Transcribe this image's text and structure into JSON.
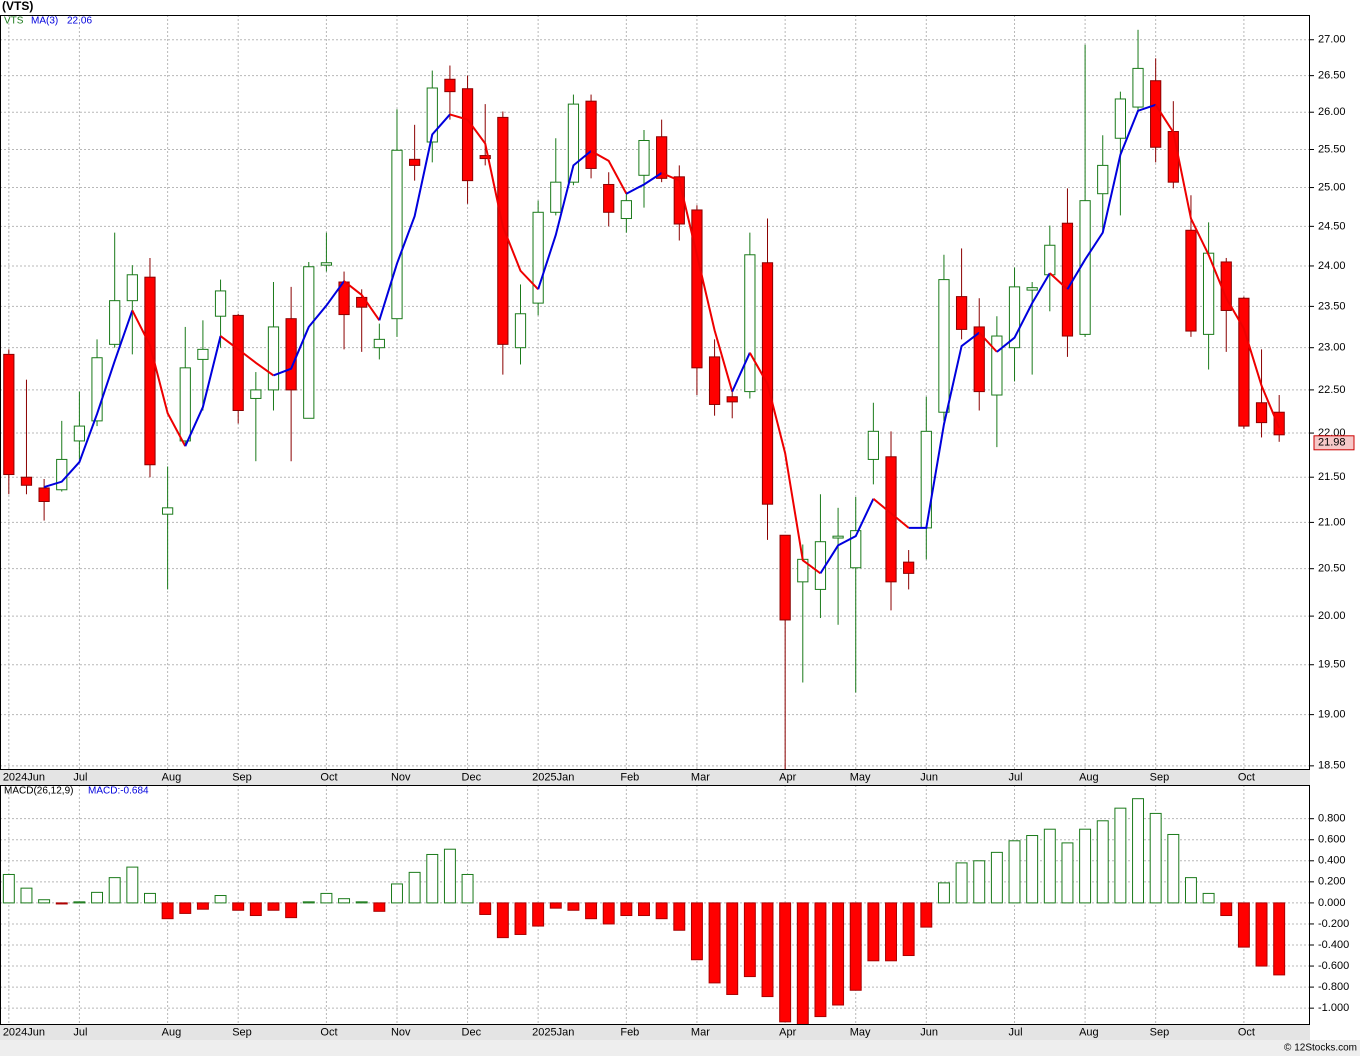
{
  "chart_data": [
    {
      "type": "candlestick",
      "title": "(VTS)",
      "name": "VTS",
      "categories": [
        "2024Jun",
        null,
        null,
        null,
        "Jul",
        null,
        null,
        null,
        null,
        "Aug",
        null,
        null,
        null,
        "Sep",
        null,
        null,
        null,
        null,
        "Oct",
        null,
        null,
        null,
        "Nov",
        null,
        null,
        null,
        "Dec",
        null,
        null,
        null,
        "2025Jan",
        null,
        null,
        null,
        null,
        "Feb",
        null,
        null,
        null,
        "Mar",
        null,
        null,
        null,
        null,
        "Apr",
        null,
        null,
        null,
        "May",
        null,
        null,
        null,
        "Jun",
        null,
        null,
        null,
        null,
        "Jul",
        null,
        null,
        null,
        "Aug",
        null,
        null,
        null,
        "Sep",
        null,
        null,
        null,
        null,
        "Oct",
        null,
        null
      ],
      "open": [
        22.92,
        21.5,
        21.38,
        21.36,
        21.91,
        22.14,
        23.04,
        23.57,
        23.86,
        21.09,
        21.91,
        22.86,
        23.38,
        23.39,
        22.4,
        22.5,
        23.35,
        22.17,
        24.01,
        23.8,
        23.61,
        23.0,
        23.35,
        25.37,
        25.6,
        26.45,
        26.32,
        25.42,
        25.93,
        23.0,
        23.54,
        24.68,
        25.07,
        26.15,
        25.04,
        24.6,
        25.16,
        25.67,
        25.14,
        24.71,
        22.89,
        22.42,
        22.48,
        24.04,
        20.86,
        20.36,
        20.28,
        20.83,
        20.51,
        21.7,
        21.73,
        20.57,
        20.94,
        22.24,
        23.62,
        23.25,
        22.44,
        23.0,
        23.7,
        23.89,
        24.54,
        23.16,
        24.92,
        25.65,
        26.07,
        26.43,
        25.74,
        24.45,
        23.16,
        24.05,
        23.6,
        22.35,
        22.24
      ],
      "high": [
        22.98,
        22.62,
        21.48,
        22.14,
        22.48,
        23.1,
        24.42,
        24.01,
        24.1,
        21.62,
        23.25,
        23.33,
        23.83,
        23.41,
        22.71,
        23.8,
        23.74,
        24.05,
        24.42,
        23.93,
        23.71,
        23.29,
        26.04,
        25.83,
        26.57,
        26.64,
        26.5,
        26.11,
        26.01,
        23.77,
        24.83,
        25.65,
        26.24,
        26.24,
        25.2,
        24.94,
        25.76,
        25.9,
        25.29,
        24.77,
        23.1,
        22.5,
        24.42,
        24.6,
        20.86,
        20.76,
        21.31,
        21.16,
        21.28,
        22.35,
        22.02,
        20.7,
        22.42,
        24.14,
        24.22,
        23.6,
        23.38,
        23.98,
        23.8,
        24.51,
        24.99,
        26.93,
        25.69,
        26.28,
        27.14,
        26.74,
        26.15,
        24.9,
        24.55,
        24.1,
        23.62,
        22.98,
        22.44
      ],
      "low": [
        21.31,
        21.31,
        21.02,
        21.34,
        21.7,
        22.08,
        23.0,
        22.92,
        21.5,
        20.28,
        21.86,
        22.26,
        23.0,
        22.11,
        21.68,
        22.26,
        21.68,
        22.17,
        23.93,
        22.98,
        22.95,
        22.86,
        23.13,
        25.09,
        25.33,
        25.9,
        24.79,
        25.29,
        22.68,
        22.8,
        23.39,
        24.64,
        25.03,
        25.12,
        24.5,
        24.42,
        24.74,
        25.07,
        24.32,
        22.44,
        22.2,
        22.17,
        22.4,
        20.81,
        18.46,
        19.32,
        19.98,
        19.91,
        19.22,
        21.42,
        20.06,
        20.28,
        20.6,
        22.14,
        23.1,
        22.26,
        21.84,
        22.6,
        22.68,
        23.44,
        22.89,
        23.13,
        24.45,
        24.64,
        26.01,
        25.33,
        24.99,
        23.13,
        22.74,
        22.95,
        22.05,
        21.95,
        21.9
      ],
      "close": [
        21.53,
        21.41,
        21.23,
        21.7,
        22.08,
        22.88,
        23.57,
        23.89,
        21.64,
        21.16,
        22.76,
        22.98,
        23.69,
        22.26,
        22.5,
        23.25,
        22.5,
        23.99,
        24.04,
        23.4,
        23.49,
        23.1,
        25.49,
        25.29,
        26.33,
        26.28,
        25.09,
        25.38,
        23.04,
        23.41,
        24.68,
        25.07,
        26.11,
        25.25,
        24.68,
        24.83,
        25.62,
        25.12,
        24.53,
        22.76,
        22.33,
        22.36,
        24.14,
        21.2,
        19.96,
        20.6,
        20.79,
        20.85,
        20.91,
        22.02,
        20.36,
        20.45,
        22.02,
        23.83,
        23.22,
        22.48,
        23.14,
        23.74,
        23.73,
        24.26,
        23.14,
        24.83,
        25.29,
        26.18,
        26.6,
        25.53,
        25.07,
        23.2,
        24.16,
        23.45,
        22.08,
        22.12,
        21.98
      ],
      "up_color": "#1a7a1a",
      "down_color": "#ff0000",
      "series": [
        {
          "name": "MA(3)",
          "up_color": "#0000dd",
          "down_color": "#ee0000",
          "values": [
            null,
            null,
            21.39,
            21.45,
            21.67,
            22.22,
            22.84,
            23.45,
            23.03,
            22.23,
            21.85,
            22.3,
            23.14,
            22.98,
            22.82,
            22.67,
            22.75,
            23.25,
            23.51,
            23.81,
            23.64,
            23.33,
            24.03,
            24.63,
            25.7,
            25.97,
            25.9,
            25.58,
            24.5,
            23.94,
            23.71,
            24.39,
            25.29,
            25.48,
            25.35,
            24.92,
            25.04,
            25.19,
            25.09,
            24.14,
            23.21,
            22.48,
            22.94,
            22.57,
            21.77,
            20.59,
            20.45,
            20.75,
            20.85,
            21.26,
            21.1,
            20.94,
            20.94,
            22.1,
            23.02,
            23.18,
            22.95,
            23.12,
            23.54,
            23.91,
            23.71,
            24.08,
            24.42,
            25.43,
            26.02,
            26.1,
            25.73,
            24.6,
            24.14,
            23.6,
            23.23,
            22.55,
            22.06
          ]
        }
      ],
      "log_scale": true,
      "grid": true,
      "ylim": [
        18.46,
        27.35
      ],
      "yticks": [
        {
          "value": 18.5,
          "label": "18.50"
        },
        {
          "value": 19,
          "label": "19.00"
        },
        {
          "value": 19.5,
          "label": "19.50"
        },
        {
          "value": 20,
          "label": "20.00"
        },
        {
          "value": 20.5,
          "label": "20.50"
        },
        {
          "value": 21,
          "label": "21.00"
        },
        {
          "value": 21.5,
          "label": "21.50"
        },
        {
          "value": 22,
          "label": "22.00"
        },
        {
          "value": 22.5,
          "label": "22.50"
        },
        {
          "value": 23,
          "label": "23.00"
        },
        {
          "value": 23.5,
          "label": "23.50"
        },
        {
          "value": 24,
          "label": "24.00"
        },
        {
          "value": 24.5,
          "label": "24.50"
        },
        {
          "value": 25,
          "label": "25.00"
        },
        {
          "value": 25.5,
          "label": "25.50"
        },
        {
          "value": 26,
          "label": "26.00"
        },
        {
          "value": 26.5,
          "label": "26.50"
        },
        {
          "value": 27,
          "label": "27.00"
        }
      ]
    },
    {
      "type": "bar",
      "name": "MACD(26,12,9)",
      "legend_value_label": "MACD:-0.684",
      "categories": [
        "2024Jun",
        null,
        null,
        null,
        "Jul",
        null,
        null,
        null,
        null,
        "Aug",
        null,
        null,
        null,
        "Sep",
        null,
        null,
        null,
        null,
        "Oct",
        null,
        null,
        null,
        "Nov",
        null,
        null,
        null,
        "Dec",
        null,
        null,
        null,
        "2025Jan",
        null,
        null,
        null,
        null,
        "Feb",
        null,
        null,
        null,
        "Mar",
        null,
        null,
        null,
        null,
        "Apr",
        null,
        null,
        null,
        "May",
        null,
        null,
        null,
        "Jun",
        null,
        null,
        null,
        null,
        "Jul",
        null,
        null,
        null,
        "Aug",
        null,
        null,
        null,
        "Sep",
        null,
        null,
        null,
        null,
        "Oct",
        null,
        null
      ],
      "values": [
        0.27,
        0.14,
        0.03,
        -0.01,
        0.01,
        0.1,
        0.24,
        0.34,
        0.09,
        -0.15,
        -0.1,
        -0.06,
        0.07,
        -0.07,
        -0.12,
        -0.07,
        -0.14,
        0.01,
        0.09,
        0.04,
        0.01,
        -0.08,
        0.18,
        0.29,
        0.46,
        0.51,
        0.27,
        -0.11,
        -0.33,
        -0.3,
        -0.22,
        -0.05,
        -0.07,
        -0.15,
        -0.2,
        -0.12,
        -0.12,
        -0.15,
        -0.26,
        -0.54,
        -0.76,
        -0.87,
        -0.7,
        -0.89,
        -1.13,
        -1.17,
        -1.08,
        -0.97,
        -0.83,
        -0.55,
        -0.55,
        -0.5,
        -0.23,
        0.19,
        0.38,
        0.4,
        0.48,
        0.59,
        0.64,
        0.7,
        0.57,
        0.7,
        0.78,
        0.9,
        0.99,
        0.85,
        0.65,
        0.24,
        0.09,
        -0.12,
        -0.42,
        -0.6,
        -0.684
      ],
      "up_color": "#1a7a1a",
      "down_color": "#ff0000",
      "grid": true,
      "ylim": [
        -1.16,
        1.12
      ],
      "yticks": [
        {
          "value": -1,
          "label": "-1.000"
        },
        {
          "value": -0.8,
          "label": "-0.800"
        },
        {
          "value": -0.6,
          "label": "-0.600"
        },
        {
          "value": -0.4,
          "label": "-0.400"
        },
        {
          "value": -0.2,
          "label": "-0.200"
        },
        {
          "value": 0,
          "label": "0.000"
        },
        {
          "value": 0.2,
          "label": "0.200"
        },
        {
          "value": 0.4,
          "label": "0.400"
        },
        {
          "value": 0.6,
          "label": "0.600"
        },
        {
          "value": 0.8,
          "label": "0.800"
        }
      ]
    }
  ],
  "footer": "© 12Stocks.com"
}
